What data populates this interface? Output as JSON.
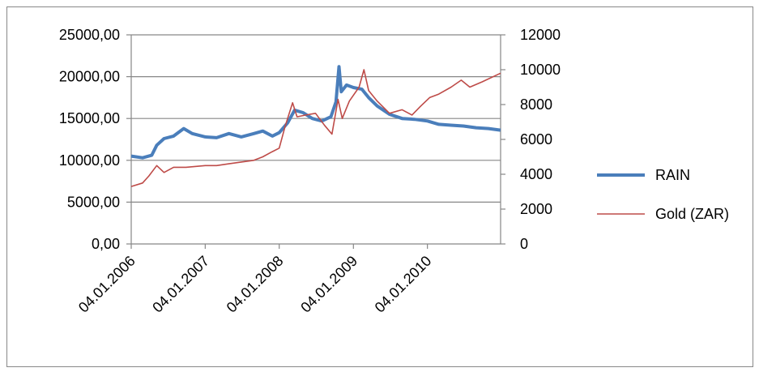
{
  "chart_data": {
    "type": "line",
    "title": "",
    "xlabel": "",
    "ylabel": "",
    "x_tick_labels": [
      "04.01.2006",
      "04.01.2007",
      "04.01.2008",
      "04.01.2009",
      "04.01.2010"
    ],
    "y_left": {
      "ticks": [
        "0,00",
        "5000,00",
        "10000,00",
        "15000,00",
        "20000,00",
        "25000,00"
      ],
      "ylim": [
        0,
        25000
      ]
    },
    "y_right": {
      "ticks": [
        "0",
        "2000",
        "4000",
        "6000",
        "8000",
        "10000",
        "12000"
      ],
      "ylim": [
        0,
        12000
      ]
    },
    "xlim": [
      "2006-01-04",
      "2010-12-31"
    ],
    "grid": "horizontal",
    "legend": "right",
    "series": [
      {
        "name": "RAIN",
        "axis": "left",
        "color": "#4a7ebb",
        "points": [
          [
            "2006-01-04",
            10500
          ],
          [
            "2006-03-01",
            10300
          ],
          [
            "2006-04-15",
            10600
          ],
          [
            "2006-05-10",
            11800
          ],
          [
            "2006-06-15",
            12600
          ],
          [
            "2006-08-01",
            12900
          ],
          [
            "2006-09-20",
            13800
          ],
          [
            "2006-11-01",
            13200
          ],
          [
            "2007-01-04",
            12800
          ],
          [
            "2007-03-01",
            12700
          ],
          [
            "2007-05-01",
            13200
          ],
          [
            "2007-07-01",
            12800
          ],
          [
            "2007-09-01",
            13200
          ],
          [
            "2007-10-15",
            13500
          ],
          [
            "2007-12-01",
            12900
          ],
          [
            "2008-01-04",
            13300
          ],
          [
            "2008-02-15",
            14500
          ],
          [
            "2008-03-20",
            16000
          ],
          [
            "2008-05-01",
            15700
          ],
          [
            "2008-06-15",
            15000
          ],
          [
            "2008-08-01",
            14700
          ],
          [
            "2008-09-15",
            15200
          ],
          [
            "2008-10-10",
            17000
          ],
          [
            "2008-10-25",
            21200
          ],
          [
            "2008-11-05",
            18200
          ],
          [
            "2008-12-01",
            19000
          ],
          [
            "2009-01-04",
            18700
          ],
          [
            "2009-02-15",
            18500
          ],
          [
            "2009-03-20",
            17500
          ],
          [
            "2009-05-01",
            16500
          ],
          [
            "2009-07-01",
            15500
          ],
          [
            "2009-09-01",
            15000
          ],
          [
            "2009-11-01",
            14900
          ],
          [
            "2010-01-04",
            14700
          ],
          [
            "2010-03-01",
            14300
          ],
          [
            "2010-05-01",
            14200
          ],
          [
            "2010-07-01",
            14100
          ],
          [
            "2010-09-01",
            13900
          ],
          [
            "2010-11-01",
            13800
          ],
          [
            "2010-12-31",
            13600
          ]
        ]
      },
      {
        "name": "Gold (ZAR)",
        "axis": "right",
        "color": "#be4b48",
        "points": [
          [
            "2006-01-04",
            3300
          ],
          [
            "2006-03-01",
            3500
          ],
          [
            "2006-04-01",
            3900
          ],
          [
            "2006-05-10",
            4500
          ],
          [
            "2006-06-15",
            4100
          ],
          [
            "2006-08-01",
            4400
          ],
          [
            "2006-10-01",
            4400
          ],
          [
            "2007-01-04",
            4500
          ],
          [
            "2007-03-01",
            4500
          ],
          [
            "2007-05-01",
            4600
          ],
          [
            "2007-07-01",
            4700
          ],
          [
            "2007-09-01",
            4800
          ],
          [
            "2007-10-15",
            5000
          ],
          [
            "2007-12-01",
            5300
          ],
          [
            "2008-01-04",
            5500
          ],
          [
            "2008-02-01",
            6700
          ],
          [
            "2008-03-10",
            8100
          ],
          [
            "2008-04-01",
            7300
          ],
          [
            "2008-05-15",
            7400
          ],
          [
            "2008-07-01",
            7500
          ],
          [
            "2008-08-15",
            6800
          ],
          [
            "2008-09-20",
            6300
          ],
          [
            "2008-10-20",
            8300
          ],
          [
            "2008-11-10",
            7200
          ],
          [
            "2008-12-15",
            8200
          ],
          [
            "2009-02-01",
            9000
          ],
          [
            "2009-02-25",
            10000
          ],
          [
            "2009-03-20",
            8800
          ],
          [
            "2009-05-01",
            8200
          ],
          [
            "2009-07-01",
            7500
          ],
          [
            "2009-09-01",
            7700
          ],
          [
            "2009-10-20",
            7400
          ],
          [
            "2009-12-01",
            7900
          ],
          [
            "2010-01-15",
            8400
          ],
          [
            "2010-03-01",
            8600
          ],
          [
            "2010-05-01",
            9000
          ],
          [
            "2010-06-20",
            9400
          ],
          [
            "2010-08-01",
            9000
          ],
          [
            "2010-10-01",
            9300
          ],
          [
            "2010-12-31",
            9800
          ]
        ]
      }
    ]
  }
}
